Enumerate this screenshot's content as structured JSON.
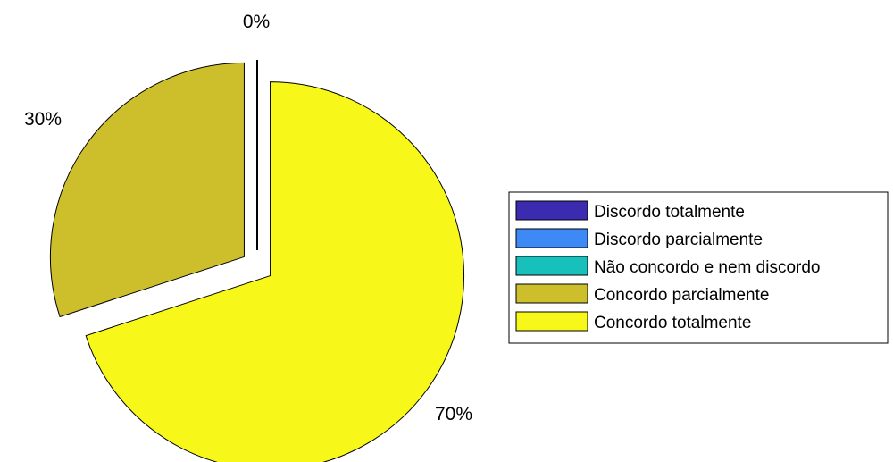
{
  "chart_data": {
    "type": "pie",
    "title": "",
    "categories": [
      "Discordo totalmente",
      "Discordo parcialmente",
      "Não concordo e nem discordo",
      "Concordo parcialmente",
      "Concordo totalmente"
    ],
    "values": [
      0,
      0,
      0,
      30,
      70
    ],
    "percent_labels": [
      "0%",
      "30%",
      "70%"
    ],
    "colors": [
      "#3b2bb0",
      "#3d8af7",
      "#17c0ba",
      "#cdbf2c",
      "#f8f71a"
    ],
    "exploded": true,
    "legend_position": "right"
  }
}
